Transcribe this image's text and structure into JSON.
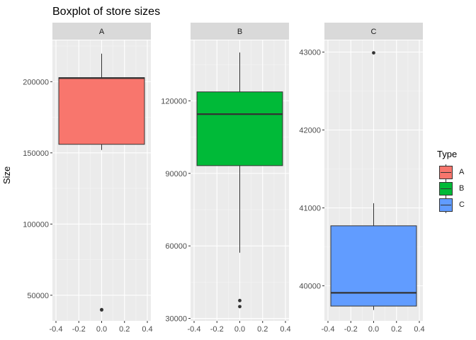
{
  "chart_data": {
    "type": "boxplot",
    "title": "Boxplot of store sizes",
    "ylabel": "Size",
    "xlabel": "",
    "legend": {
      "title": "Type",
      "placement": "right",
      "entries": [
        {
          "label": "A",
          "color": "#F8766D"
        },
        {
          "label": "B",
          "color": "#00BA38"
        },
        {
          "label": "C",
          "color": "#619CFF"
        }
      ]
    },
    "grid": true,
    "facets": [
      {
        "strip": "A",
        "color": "#F8766D",
        "ylim": [
          32000,
          229000
        ],
        "yticks": [
          50000,
          100000,
          150000,
          200000
        ],
        "ytick_labels": [
          "50000",
          "100000",
          "150000",
          "200000"
        ],
        "xlim": [
          -0.4,
          0.4
        ],
        "xticks": [
          -0.4,
          -0.2,
          0.0,
          0.2,
          0.4
        ],
        "xtick_labels": [
          "-0.4",
          "-0.2",
          "0.0",
          "0.2",
          "0.4"
        ],
        "box": {
          "x": 0.0,
          "width": 0.75,
          "whisker_low": 152000,
          "q1": 156000,
          "median": 202500,
          "q3": 202800,
          "whisker_high": 219700,
          "outliers": [
            39700,
            39900
          ]
        }
      },
      {
        "strip": "B",
        "color": "#00BA38",
        "ylim": [
          29000,
          145000
        ],
        "yticks": [
          30000,
          60000,
          90000,
          120000
        ],
        "ytick_labels": [
          "30000",
          "60000",
          "90000",
          "120000"
        ],
        "xlim": [
          -0.4,
          0.4
        ],
        "xticks": [
          -0.4,
          -0.2,
          0.0,
          0.2,
          0.4
        ],
        "xtick_labels": [
          "-0.4",
          "-0.2",
          "0.0",
          "0.2",
          "0.4"
        ],
        "box": {
          "x": 0.0,
          "width": 0.75,
          "whisker_low": 57200,
          "q1": 93200,
          "median": 114500,
          "q3": 123700,
          "whisker_high": 140000,
          "outliers": [
            34900,
            37400
          ]
        }
      },
      {
        "strip": "C",
        "color": "#619CFF",
        "ylim": [
          39550,
          43150
        ],
        "yticks": [
          40000,
          41000,
          42000,
          43000
        ],
        "ytick_labels": [
          "40000",
          "41000",
          "42000",
          "43000"
        ],
        "xlim": [
          -0.4,
          0.4
        ],
        "xticks": [
          -0.4,
          -0.2,
          0.0,
          0.2,
          0.4
        ],
        "xtick_labels": [
          "-0.4",
          "-0.2",
          "0.0",
          "0.2",
          "0.4"
        ],
        "box": {
          "x": 0.0,
          "width": 0.75,
          "whisker_low": 39690,
          "q1": 39740,
          "median": 39910,
          "q3": 40770,
          "whisker_high": 41060,
          "outliers": [
            42990
          ]
        }
      }
    ]
  }
}
